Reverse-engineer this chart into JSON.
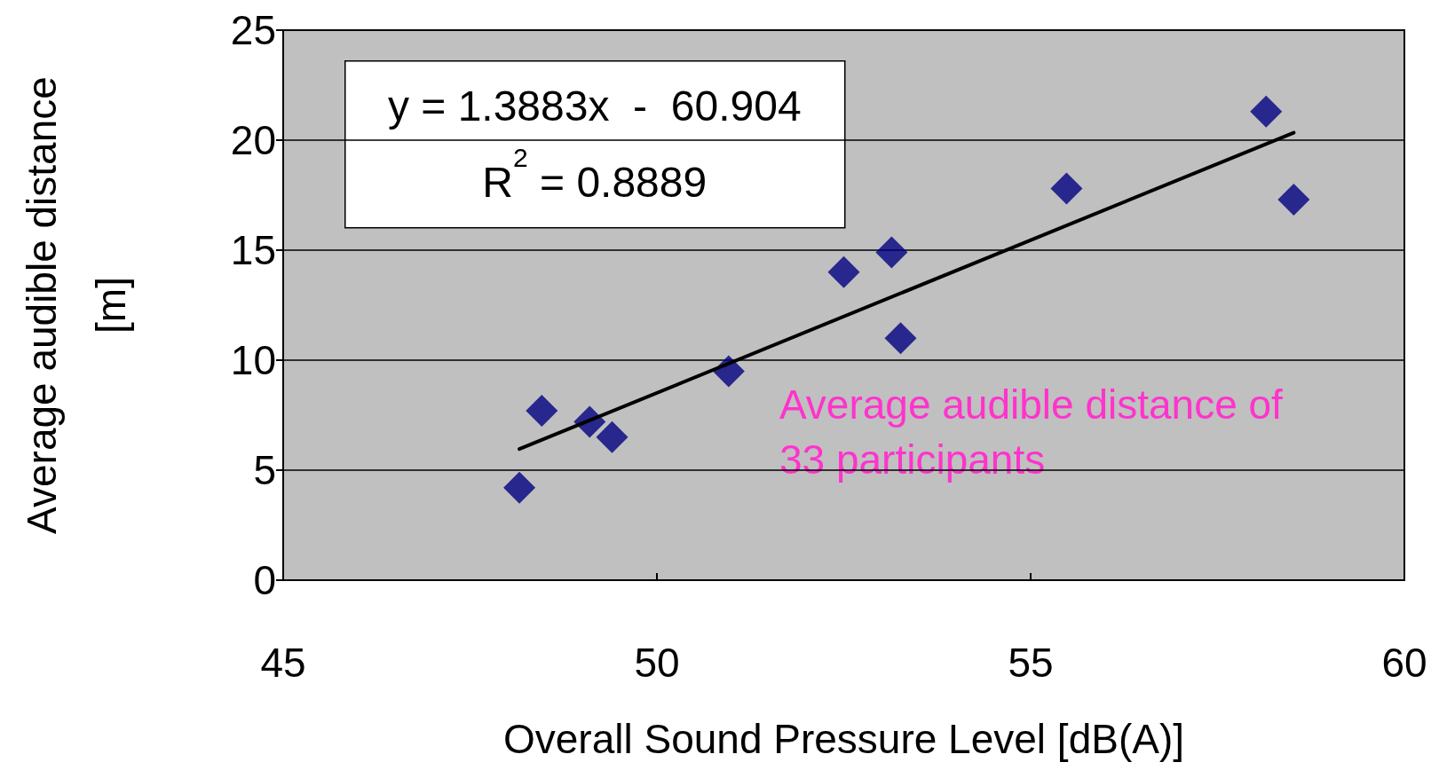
{
  "chart_data": {
    "type": "scatter",
    "xlabel": "Overall Sound Pressure Level [dB(A)]",
    "ylabel": "Average audible distance\n[m]",
    "xlim": [
      45,
      60
    ],
    "xticks": [
      45,
      50,
      55,
      60
    ],
    "ylim": [
      0,
      25
    ],
    "yticks": [
      0,
      5,
      10,
      15,
      20,
      25
    ],
    "grid": "y",
    "marker": "diamond",
    "series": [
      {
        "color": "#000080",
        "x": [
          48.16,
          48.46,
          49.1,
          49.4,
          50.96,
          52.5,
          53.14,
          53.26,
          55.48,
          58.15,
          58.52
        ],
        "values": [
          4.2,
          7.7,
          7.2,
          6.5,
          9.5,
          14.0,
          14.9,
          11.0,
          17.8,
          21.3,
          17.3
        ]
      },
      {
        "type": "line",
        "color": "#000000",
        "marker": "none",
        "line_style": "solid",
        "x": [
          48.16,
          58.52
        ],
        "values": [
          5.96,
          20.34
        ]
      }
    ],
    "annotations": [
      "y = 1.3883x  -  60.904",
      "R$^{2}$ = 0.8889",
      "Average audible distance of\n33 participants"
    ]
  }
}
